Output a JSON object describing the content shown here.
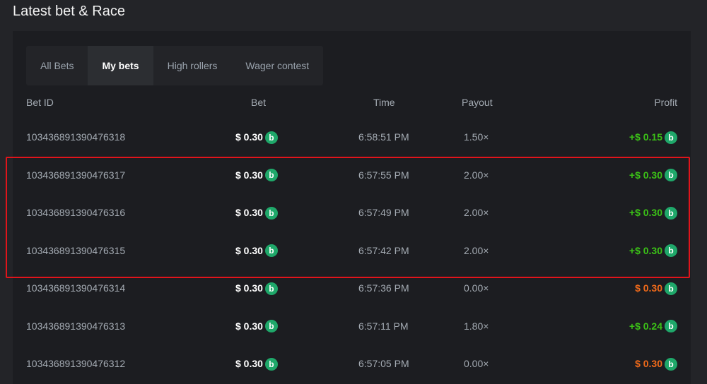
{
  "title": "Latest bet & Race",
  "tabs": [
    {
      "label": "All Bets"
    },
    {
      "label": "My bets",
      "active": true
    },
    {
      "label": "High rollers"
    },
    {
      "label": "Wager contest"
    }
  ],
  "columns": {
    "id": "Bet ID",
    "bet": "Bet",
    "time": "Time",
    "payout": "Payout",
    "profit": "Profit"
  },
  "colors": {
    "win": "#3bc117",
    "loss": "#f06a1a",
    "coin": "#1fa86a",
    "highlight": "#e0141b"
  },
  "coin_icon": "b",
  "rows": [
    {
      "id": "103436891390476318",
      "bet": "$ 0.30",
      "time": "6:58:51 PM",
      "payout": "1.50×",
      "profit": "+$ 0.15",
      "win": true
    },
    {
      "id": "103436891390476317",
      "bet": "$ 0.30",
      "time": "6:57:55 PM",
      "payout": "2.00×",
      "profit": "+$ 0.30",
      "win": true
    },
    {
      "id": "103436891390476316",
      "bet": "$ 0.30",
      "time": "6:57:49 PM",
      "payout": "2.00×",
      "profit": "+$ 0.30",
      "win": true
    },
    {
      "id": "103436891390476315",
      "bet": "$ 0.30",
      "time": "6:57:42 PM",
      "payout": "2.00×",
      "profit": "+$ 0.30",
      "win": true
    },
    {
      "id": "103436891390476314",
      "bet": "$ 0.30",
      "time": "6:57:36 PM",
      "payout": "0.00×",
      "profit": "$ 0.30",
      "win": false
    },
    {
      "id": "103436891390476313",
      "bet": "$ 0.30",
      "time": "6:57:11 PM",
      "payout": "1.80×",
      "profit": "+$ 0.24",
      "win": true
    },
    {
      "id": "103436891390476312",
      "bet": "$ 0.30",
      "time": "6:57:05 PM",
      "payout": "0.00×",
      "profit": "$ 0.30",
      "win": false
    }
  ]
}
